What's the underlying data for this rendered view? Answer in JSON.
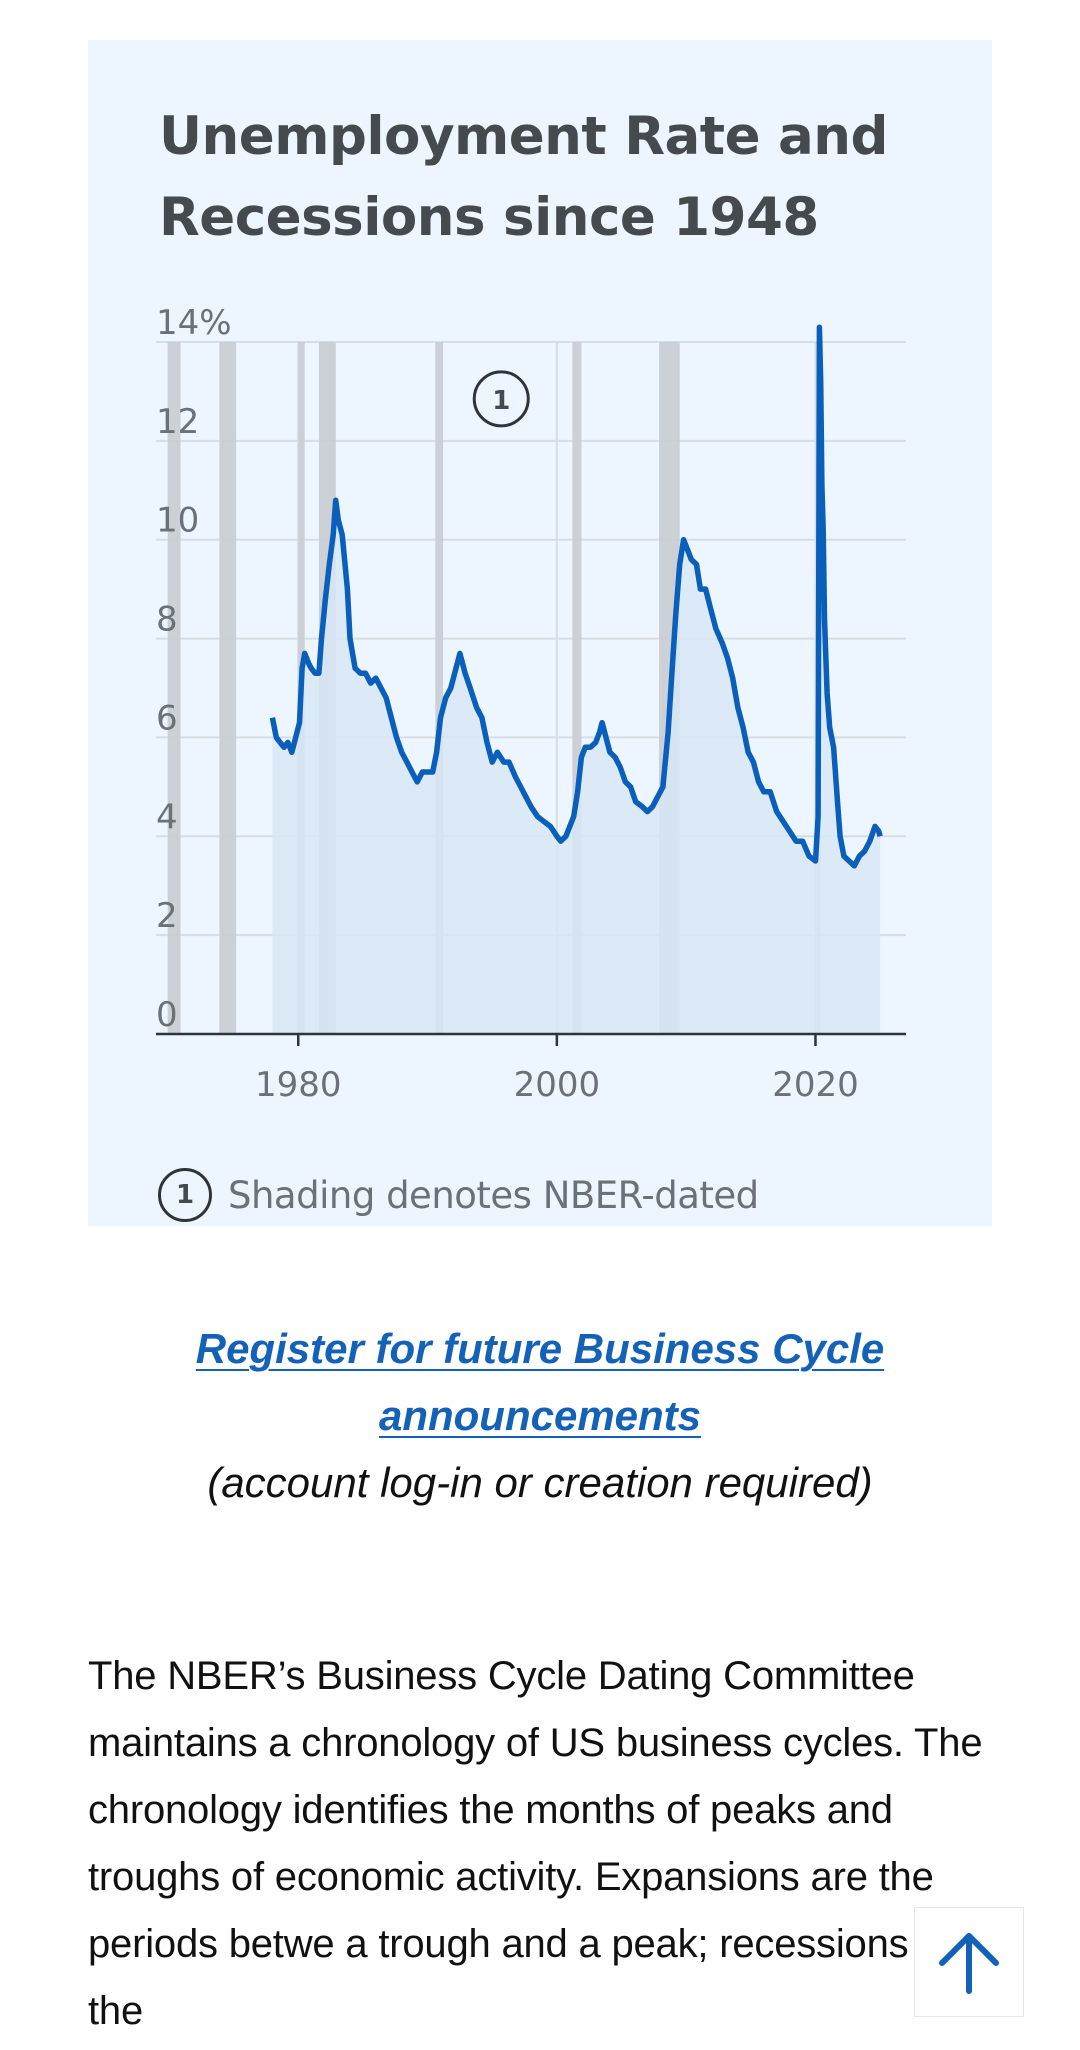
{
  "chart": {
    "title": "Unemployment Rate and Recessions since 1948",
    "callout_marker": "1",
    "footnote": {
      "marker": "1",
      "text": "Shading denotes NBER-dated"
    }
  },
  "register": {
    "link_text": "Register for future Business Cycle announcements",
    "note": "(account log-in or creation required)"
  },
  "body": {
    "paragraph": "The NBER’s Business Cycle Dating Committee maintains a chronology of US business cycles. The chronology identifies the months of peaks and troughs of economic activity. Expansions are the periods betwe a trough and a peak; recessions are the"
  },
  "back_to_top": {
    "icon": "arrow-up-icon"
  },
  "colors": {
    "card_background": "#edf5fe",
    "line": "#0a5fba",
    "area_fill": "#d8e6f5",
    "recession_shading": "#c7cdd3",
    "link": "#1461b8"
  },
  "chart_data": {
    "type": "area",
    "title": "Unemployment Rate and Recessions since 1948",
    "xlabel": "",
    "ylabel": "",
    "x_ticks": [
      "1980",
      "2000",
      "2020"
    ],
    "y_ticks": [
      "0",
      "2",
      "4",
      "6",
      "8",
      "10",
      "12",
      "14%"
    ],
    "xlim": [
      1969,
      2027
    ],
    "ylim": [
      0,
      14
    ],
    "grid": true,
    "series": [
      {
        "points": [
          [
            1978.0,
            6.4
          ],
          [
            1978.3,
            6.0
          ],
          [
            1978.6,
            5.9
          ],
          [
            1978.9,
            5.8
          ],
          [
            1979.2,
            5.9
          ],
          [
            1979.5,
            5.7
          ],
          [
            1979.8,
            6.0
          ],
          [
            1980.1,
            6.3
          ],
          [
            1980.3,
            7.4
          ],
          [
            1980.5,
            7.7
          ],
          [
            1980.8,
            7.5
          ],
          [
            1981.0,
            7.4
          ],
          [
            1981.3,
            7.3
          ],
          [
            1981.6,
            7.3
          ],
          [
            1981.8,
            8.0
          ],
          [
            1982.1,
            8.8
          ],
          [
            1982.4,
            9.5
          ],
          [
            1982.7,
            10.1
          ],
          [
            1982.9,
            10.8
          ],
          [
            1983.1,
            10.4
          ],
          [
            1983.4,
            10.1
          ],
          [
            1983.8,
            9.0
          ],
          [
            1984.0,
            8.0
          ],
          [
            1984.4,
            7.4
          ],
          [
            1984.8,
            7.3
          ],
          [
            1985.2,
            7.3
          ],
          [
            1985.6,
            7.1
          ],
          [
            1986.0,
            7.2
          ],
          [
            1986.4,
            7.0
          ],
          [
            1986.8,
            6.8
          ],
          [
            1987.2,
            6.4
          ],
          [
            1987.6,
            6.0
          ],
          [
            1988.0,
            5.7
          ],
          [
            1988.4,
            5.5
          ],
          [
            1988.8,
            5.3
          ],
          [
            1989.2,
            5.1
          ],
          [
            1989.6,
            5.3
          ],
          [
            1990.0,
            5.3
          ],
          [
            1990.4,
            5.3
          ],
          [
            1990.7,
            5.7
          ],
          [
            1991.0,
            6.4
          ],
          [
            1991.4,
            6.8
          ],
          [
            1991.8,
            7.0
          ],
          [
            1992.2,
            7.4
          ],
          [
            1992.5,
            7.7
          ],
          [
            1992.9,
            7.3
          ],
          [
            1993.3,
            7.0
          ],
          [
            1993.8,
            6.6
          ],
          [
            1994.2,
            6.4
          ],
          [
            1994.6,
            5.9
          ],
          [
            1995.0,
            5.5
          ],
          [
            1995.4,
            5.7
          ],
          [
            1995.9,
            5.5
          ],
          [
            1996.3,
            5.5
          ],
          [
            1996.8,
            5.2
          ],
          [
            1997.2,
            5.0
          ],
          [
            1997.6,
            4.8
          ],
          [
            1998.0,
            4.6
          ],
          [
            1998.5,
            4.4
          ],
          [
            1999.0,
            4.3
          ],
          [
            1999.5,
            4.2
          ],
          [
            2000.0,
            4.0
          ],
          [
            2000.3,
            3.9
          ],
          [
            2000.7,
            4.0
          ],
          [
            2001.0,
            4.2
          ],
          [
            2001.3,
            4.4
          ],
          [
            2001.6,
            4.9
          ],
          [
            2001.9,
            5.6
          ],
          [
            2002.2,
            5.8
          ],
          [
            2002.6,
            5.8
          ],
          [
            2003.0,
            5.9
          ],
          [
            2003.3,
            6.1
          ],
          [
            2003.5,
            6.3
          ],
          [
            2003.8,
            6.0
          ],
          [
            2004.1,
            5.7
          ],
          [
            2004.5,
            5.6
          ],
          [
            2004.9,
            5.4
          ],
          [
            2005.3,
            5.1
          ],
          [
            2005.7,
            5.0
          ],
          [
            2006.1,
            4.7
          ],
          [
            2006.6,
            4.6
          ],
          [
            2007.0,
            4.5
          ],
          [
            2007.4,
            4.6
          ],
          [
            2007.8,
            4.8
          ],
          [
            2008.2,
            5.0
          ],
          [
            2008.6,
            6.1
          ],
          [
            2008.9,
            7.3
          ],
          [
            2009.2,
            8.5
          ],
          [
            2009.5,
            9.5
          ],
          [
            2009.8,
            10.0
          ],
          [
            2010.1,
            9.8
          ],
          [
            2010.4,
            9.6
          ],
          [
            2010.8,
            9.5
          ],
          [
            2011.1,
            9.0
          ],
          [
            2011.5,
            9.0
          ],
          [
            2011.9,
            8.6
          ],
          [
            2012.3,
            8.2
          ],
          [
            2012.8,
            7.9
          ],
          [
            2013.2,
            7.6
          ],
          [
            2013.6,
            7.2
          ],
          [
            2014.0,
            6.6
          ],
          [
            2014.4,
            6.2
          ],
          [
            2014.8,
            5.7
          ],
          [
            2015.2,
            5.5
          ],
          [
            2015.6,
            5.1
          ],
          [
            2016.0,
            4.9
          ],
          [
            2016.5,
            4.9
          ],
          [
            2017.0,
            4.5
          ],
          [
            2017.5,
            4.3
          ],
          [
            2018.0,
            4.1
          ],
          [
            2018.5,
            3.9
          ],
          [
            2019.0,
            3.9
          ],
          [
            2019.5,
            3.6
          ],
          [
            2020.0,
            3.5
          ],
          [
            2020.2,
            4.4
          ],
          [
            2020.3,
            14.7
          ],
          [
            2020.4,
            13.2
          ],
          [
            2020.5,
            11.1
          ],
          [
            2020.6,
            10.2
          ],
          [
            2020.7,
            8.4
          ],
          [
            2020.9,
            6.9
          ],
          [
            2021.1,
            6.2
          ],
          [
            2021.4,
            5.8
          ],
          [
            2021.7,
            4.7
          ],
          [
            2021.9,
            4.0
          ],
          [
            2022.2,
            3.6
          ],
          [
            2022.6,
            3.5
          ],
          [
            2023.0,
            3.4
          ],
          [
            2023.4,
            3.6
          ],
          [
            2023.8,
            3.7
          ],
          [
            2024.2,
            3.9
          ],
          [
            2024.6,
            4.2
          ],
          [
            2024.9,
            4.1
          ],
          [
            2025.0,
            4.0
          ]
        ]
      }
    ],
    "recessions": [
      [
        1969.9,
        1970.9
      ],
      [
        1973.9,
        1975.2
      ],
      [
        1980.0,
        1980.5
      ],
      [
        1981.6,
        1982.9
      ],
      [
        1990.6,
        1991.2
      ],
      [
        2001.2,
        2001.9
      ],
      [
        2007.9,
        2009.5
      ],
      [
        2020.1,
        2020.3
      ]
    ]
  }
}
